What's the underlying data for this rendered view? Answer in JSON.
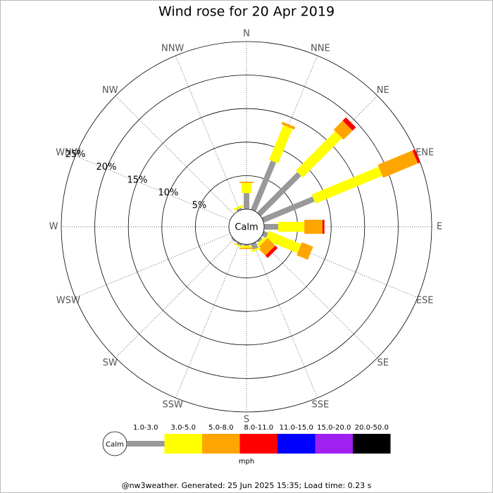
{
  "chart_data": {
    "type": "windrose",
    "title": "Wind rose for 20 Apr 2019",
    "categories": [
      "N",
      "NNE",
      "NE",
      "ENE",
      "E",
      "ESE",
      "SE",
      "SSE",
      "S",
      "SSW",
      "SW",
      "WSW",
      "W",
      "WNW",
      "NW",
      "NNW"
    ],
    "series": [
      {
        "name": "1.0-3.0",
        "color": "#999999",
        "values": [
          2.4,
          7.9,
          8.5,
          8.2,
          2.1,
          0.7,
          0.3,
          0.9,
          0.2,
          0.3,
          0.2,
          0,
          0,
          0,
          0,
          0.3
        ]
      },
      {
        "name": "3.0-5.0",
        "color": "#ffff00",
        "values": [
          1.5,
          5.6,
          8.3,
          10.8,
          3.9,
          5.2,
          0.5,
          0.3,
          0.3,
          0.2,
          0,
          0,
          0,
          0,
          0,
          0.3
        ]
      },
      {
        "name": "5.0-8.0",
        "color": "#ffa500",
        "values": [
          0.2,
          0.4,
          1.9,
          5.6,
          2.7,
          1.8,
          1.6,
          0,
          0.2,
          0,
          0,
          0,
          0,
          0,
          0,
          0
        ]
      },
      {
        "name": "8.0-11.0",
        "color": "#ff0000",
        "values": [
          0,
          0,
          0.7,
          0.4,
          0.3,
          0,
          0.5,
          0,
          0,
          0,
          0,
          0,
          0,
          0,
          0,
          0
        ]
      },
      {
        "name": "11.0-15.0",
        "color": "#0000ff",
        "values": [
          0,
          0,
          0,
          0,
          0,
          0,
          0,
          0,
          0,
          0,
          0,
          0,
          0,
          0,
          0,
          0
        ]
      },
      {
        "name": "15.0-20.0",
        "color": "#a020f0",
        "values": [
          0,
          0,
          0,
          0,
          0,
          0,
          0,
          0,
          0,
          0,
          0,
          0,
          0,
          0,
          0,
          0
        ]
      },
      {
        "name": "20.0-50.0",
        "color": "#000000",
        "values": [
          0,
          0,
          0,
          0,
          0,
          0,
          0,
          0,
          0,
          0,
          0,
          0,
          0,
          0,
          0,
          0
        ]
      }
    ],
    "rlim": [
      0,
      25
    ],
    "rticks": [
      {
        "value": 5,
        "label": "5%"
      },
      {
        "value": 10,
        "label": "10%"
      },
      {
        "value": 15,
        "label": "15%"
      },
      {
        "value": 20,
        "label": "20%"
      },
      {
        "value": 25,
        "label": "25%"
      }
    ],
    "calm_label": "Calm",
    "legend_unit": "mph",
    "footer": "@nw3weather. Generated: 25 Jun 2025 15:35; Load time: 0.23 s"
  }
}
